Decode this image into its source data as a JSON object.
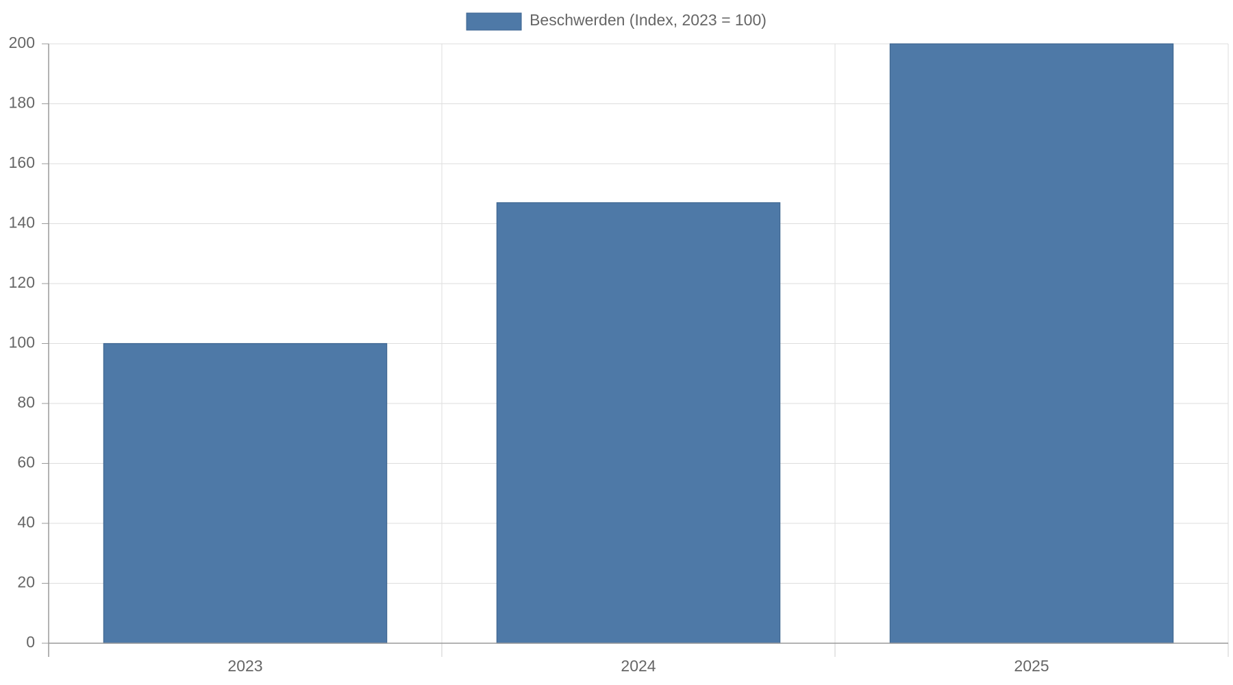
{
  "chart_data": {
    "type": "bar",
    "categories": [
      "2023",
      "2024",
      "2025"
    ],
    "series": [
      {
        "name": "Beschwerden (Index, 2023 = 100)",
        "color": "#4e79a7",
        "values": [
          100,
          147,
          200
        ]
      }
    ],
    "ylim": [
      0,
      200
    ],
    "yticks": [
      0,
      20,
      40,
      60,
      80,
      100,
      120,
      140,
      160,
      180,
      200
    ],
    "grid": true,
    "legend": "top"
  }
}
